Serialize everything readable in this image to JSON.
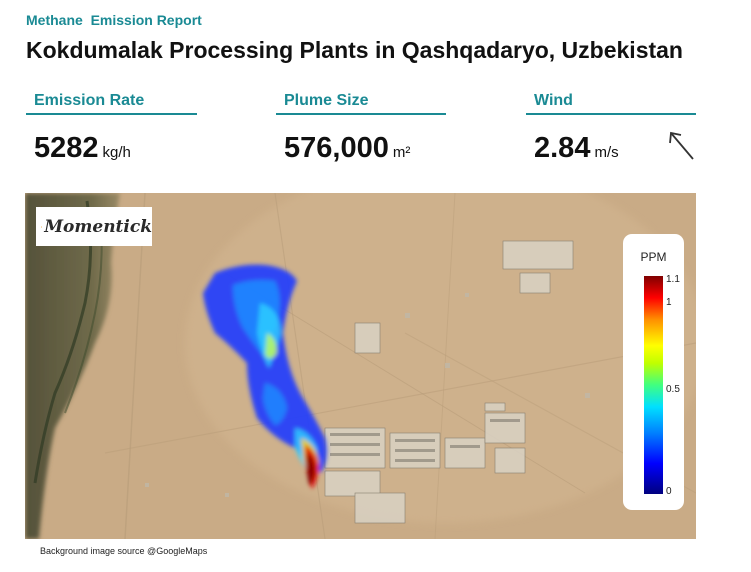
{
  "header": {
    "report_label": "Methane  Emission Report",
    "title": "Kokdumalak Processing Plants in Qashqadaryo, Uzbekistan"
  },
  "metrics": {
    "emission_rate": {
      "label": "Emission Rate",
      "value": "5282",
      "unit": "kg/h"
    },
    "plume_size": {
      "label": "Plume Size",
      "value": "576,000",
      "unit": "m²"
    },
    "wind": {
      "label": "Wind",
      "value": "2.84",
      "unit": "m/s",
      "direction_icon": "arrow-up-left-icon"
    }
  },
  "map": {
    "logo_text": "Momentick",
    "legend": {
      "title": "PPM",
      "ticks": [
        "1.1",
        "1",
        "0.5",
        "0"
      ]
    },
    "colors": {
      "accent": "#1a8a94",
      "desert": "#c7a884",
      "river_valley": "#5f5a3e"
    }
  },
  "footer": {
    "source": "Background image source @GoogleMaps"
  }
}
